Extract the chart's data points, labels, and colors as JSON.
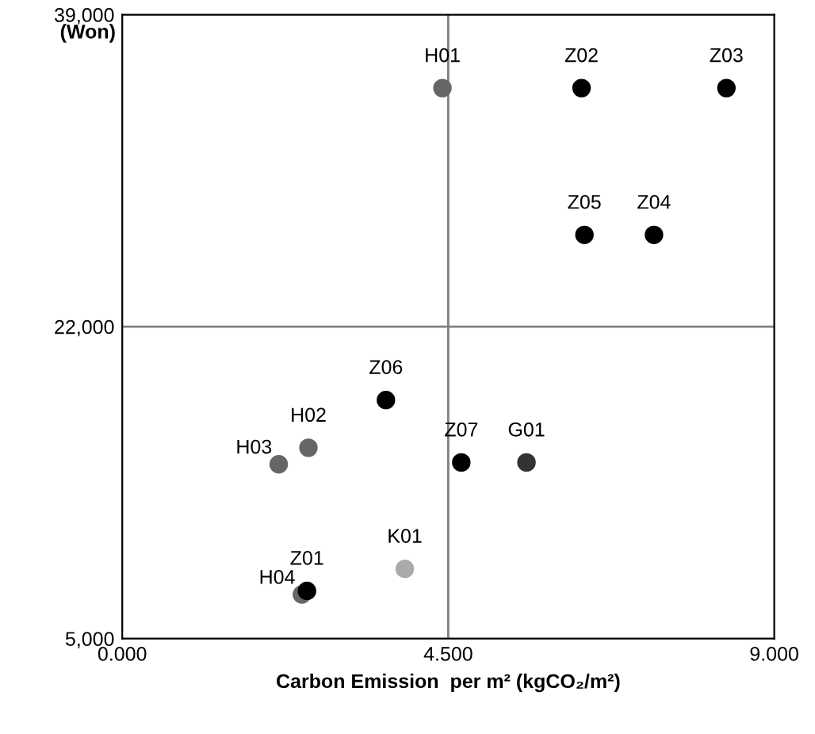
{
  "chart_data": {
    "type": "scatter",
    "xlabel": "Carbon Emission  per m² (kgCO₂/m²)",
    "ylabel": "(Won)",
    "xlim": [
      0,
      9
    ],
    "xticks": [
      {
        "value": 0,
        "label": "0.000"
      },
      {
        "value": 4.5,
        "label": "4.500"
      },
      {
        "value": 9,
        "label": "9.000"
      }
    ],
    "ylim": [
      5000,
      39000
    ],
    "yticks": [
      {
        "value": 5000,
        "label": "5,000"
      },
      {
        "value": 22000,
        "label": "22,000"
      },
      {
        "value": 39000,
        "label": "39,000"
      }
    ],
    "grid": false,
    "legend": false,
    "marker": "circle",
    "ref_lines": [
      {
        "axis": "x",
        "value": 4.5,
        "color": "#7f7f7f"
      },
      {
        "axis": "y",
        "value": 22000,
        "color": "#7f7f7f"
      }
    ],
    "series": [
      {
        "name": "H01",
        "color": "#666666",
        "x": [
          4.42
        ],
        "values": [
          35000
        ]
      },
      {
        "name": "Z02",
        "color": "#000000",
        "x": [
          6.34
        ],
        "values": [
          35000
        ]
      },
      {
        "name": "Z03",
        "color": "#000000",
        "x": [
          8.34
        ],
        "values": [
          35000
        ]
      },
      {
        "name": "Z05",
        "color": "#000000",
        "x": [
          6.38
        ],
        "values": [
          27000
        ]
      },
      {
        "name": "Z04",
        "color": "#000000",
        "x": [
          7.34
        ],
        "values": [
          27000
        ]
      },
      {
        "name": "Z06",
        "color": "#000000",
        "x": [
          3.64
        ],
        "values": [
          18000
        ]
      },
      {
        "name": "H02",
        "color": "#666666",
        "x": [
          2.57
        ],
        "values": [
          15400
        ]
      },
      {
        "name": "H03",
        "color": "#666666",
        "x": [
          2.16
        ],
        "values": [
          14500
        ]
      },
      {
        "name": "Z07",
        "color": "#000000",
        "x": [
          4.68
        ],
        "values": [
          14600
        ]
      },
      {
        "name": "G01",
        "color": "#333333",
        "x": [
          5.58
        ],
        "values": [
          14600
        ]
      },
      {
        "name": "K01",
        "color": "#aaaaaa",
        "x": [
          3.9
        ],
        "values": [
          8800
        ]
      },
      {
        "name": "H04",
        "color": "#666666",
        "x": [
          2.48
        ],
        "values": [
          7400
        ]
      },
      {
        "name": "Z01",
        "color": "#000000",
        "x": [
          2.55
        ],
        "values": [
          7600
        ]
      }
    ]
  }
}
